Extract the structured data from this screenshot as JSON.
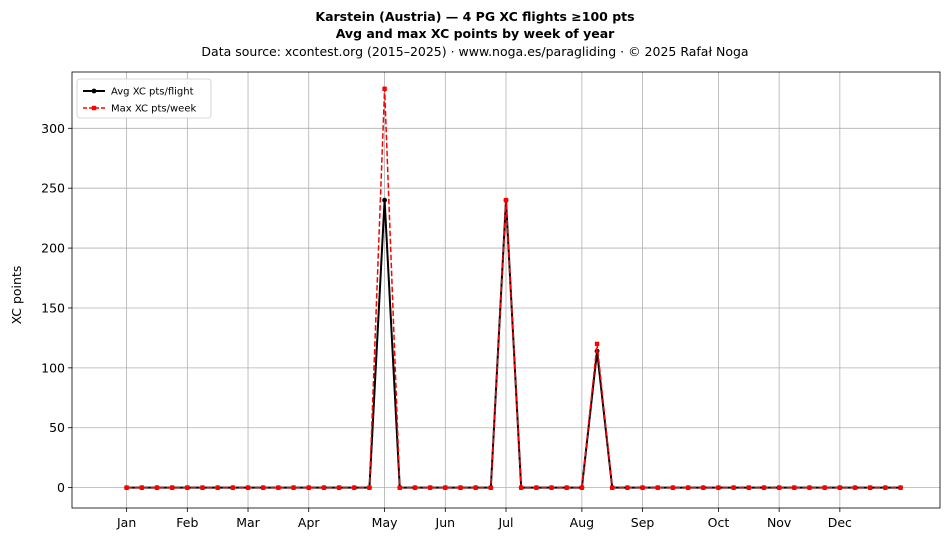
{
  "header": {
    "title": "Karstein (Austria)  —  4 PG XC flights ≥100 pts",
    "subtitle": "Avg and max XC points by week of year",
    "source": "Data source: xcontest.org (2015–2025)  ·  www.noga.es/paragliding  ·  © 2025 Rafał Noga"
  },
  "chart_data": {
    "type": "line",
    "title": "Karstein (Austria)  —  4 PG XC flights ≥100 pts",
    "subtitle": "Avg and max XC points by week of year",
    "xlabel": "",
    "ylabel": "XC points",
    "xlim": [
      -2.6,
      54.6
    ],
    "ylim": [
      -17,
      347
    ],
    "x_ticks": [
      {
        "week": 1,
        "label": "Jan"
      },
      {
        "week": 5,
        "label": "Feb"
      },
      {
        "week": 9,
        "label": "Mar"
      },
      {
        "week": 13,
        "label": "Apr"
      },
      {
        "week": 18,
        "label": "May"
      },
      {
        "week": 22,
        "label": "Jun"
      },
      {
        "week": 26,
        "label": "Jul"
      },
      {
        "week": 31,
        "label": "Aug"
      },
      {
        "week": 35,
        "label": "Sep"
      },
      {
        "week": 40,
        "label": "Oct"
      },
      {
        "week": 44,
        "label": "Nov"
      },
      {
        "week": 48,
        "label": "Dec"
      }
    ],
    "y_ticks": [
      0,
      50,
      100,
      150,
      200,
      250,
      300
    ],
    "grid": true,
    "legend_position": "top-left",
    "x": [
      1,
      2,
      3,
      4,
      5,
      6,
      7,
      8,
      9,
      10,
      11,
      12,
      13,
      14,
      15,
      16,
      17,
      18,
      19,
      20,
      21,
      22,
      23,
      24,
      25,
      26,
      27,
      28,
      29,
      30,
      31,
      32,
      33,
      34,
      35,
      36,
      37,
      38,
      39,
      40,
      41,
      42,
      43,
      44,
      45,
      46,
      47,
      48,
      49,
      50,
      51,
      52
    ],
    "series": [
      {
        "name": "Avg XC pts/flight",
        "color": "#000000",
        "style": "solid",
        "marker": "circle",
        "values": [
          0,
          0,
          0,
          0,
          0,
          0,
          0,
          0,
          0,
          0,
          0,
          0,
          0,
          0,
          0,
          0,
          0,
          240,
          0,
          0,
          0,
          0,
          0,
          0,
          0,
          240,
          0,
          0,
          0,
          0,
          0,
          114,
          0,
          0,
          0,
          0,
          0,
          0,
          0,
          0,
          0,
          0,
          0,
          0,
          0,
          0,
          0,
          0,
          0,
          0,
          0,
          0
        ]
      },
      {
        "name": "Max XC pts/week",
        "color": "#ff0000",
        "style": "dashed",
        "marker": "square",
        "values": [
          0,
          0,
          0,
          0,
          0,
          0,
          0,
          0,
          0,
          0,
          0,
          0,
          0,
          0,
          0,
          0,
          0,
          333,
          0,
          0,
          0,
          0,
          0,
          0,
          0,
          240,
          0,
          0,
          0,
          0,
          0,
          120,
          0,
          0,
          0,
          0,
          0,
          0,
          0,
          0,
          0,
          0,
          0,
          0,
          0,
          0,
          0,
          0,
          0,
          0,
          0,
          0
        ]
      }
    ]
  }
}
